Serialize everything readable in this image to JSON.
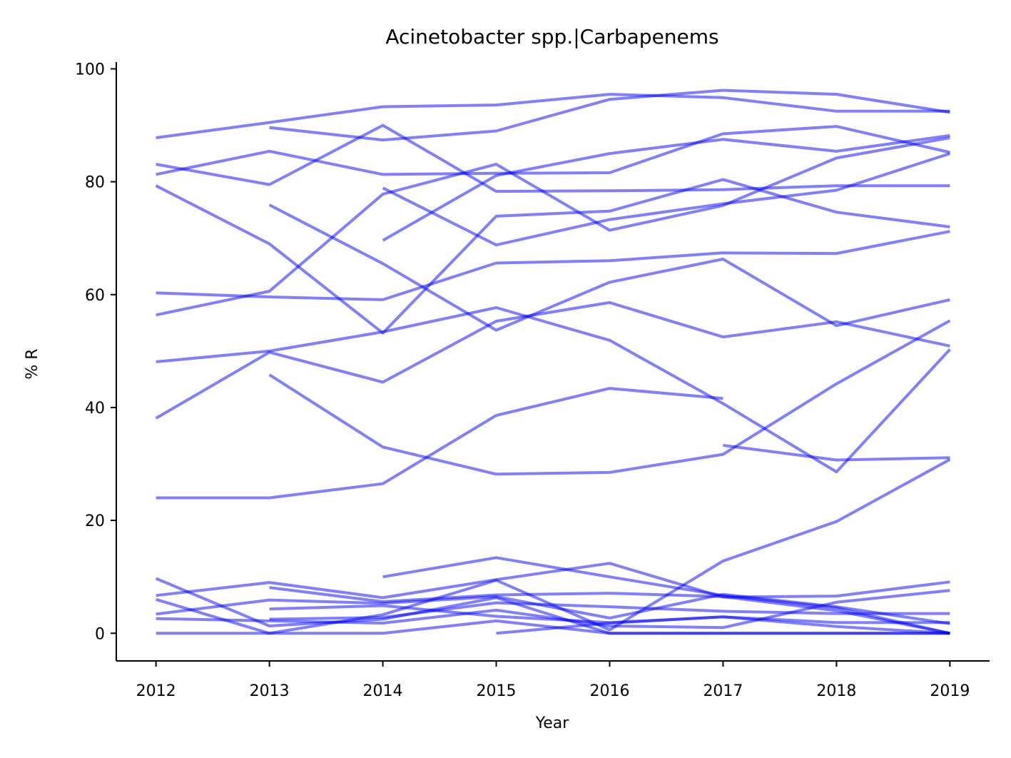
{
  "chart_data": {
    "type": "line",
    "title": "Acinetobacter spp.|Carbapenems",
    "xlabel": "Year",
    "ylabel": "% R",
    "x": [
      2012,
      2013,
      2014,
      2015,
      2016,
      2017,
      2018,
      2019
    ],
    "x_ticks": [
      2012,
      2013,
      2014,
      2015,
      2016,
      2017,
      2018,
      2019
    ],
    "y_ticks": [
      0,
      20,
      40,
      60,
      80,
      100
    ],
    "xlim": [
      2011.65,
      2019.35
    ],
    "ylim": [
      -4.9,
      101.2
    ],
    "grid": false,
    "legend": "none",
    "line_color": "#0000ff",
    "line_opacity": 0.5,
    "series": [
      {
        "values": [
          87.8,
          90.5,
          93.3,
          93.6,
          95.5,
          94.9,
          92.5,
          92.5
        ]
      },
      {
        "values": [
          null,
          89.6,
          87.4,
          89.0,
          94.6,
          96.2,
          95.5,
          92.3
        ]
      },
      {
        "values": [
          83.1,
          79.5,
          90.0,
          78.3,
          78.4,
          78.6,
          79.3,
          79.3
        ]
      },
      {
        "values": [
          81.3,
          85.4,
          81.3,
          81.5,
          81.6,
          88.5,
          89.8,
          85.2
        ]
      },
      {
        "values": [
          null,
          null,
          69.6,
          81.1,
          85.0,
          87.5,
          85.4,
          88.2
        ]
      },
      {
        "values": [
          79.3,
          69.0,
          53.2,
          73.9,
          74.8,
          80.4,
          74.6,
          72.0
        ]
      },
      {
        "values": [
          56.4,
          60.6,
          77.8,
          83.1,
          71.4,
          75.8,
          84.2,
          87.8
        ]
      },
      {
        "values": [
          null,
          null,
          78.9,
          68.8,
          73.3,
          76.1,
          78.5,
          85.0
        ]
      },
      {
        "values": [
          60.3,
          59.6,
          59.1,
          65.6,
          66.0,
          67.4,
          67.3,
          71.2
        ]
      },
      {
        "values": [
          null,
          75.9,
          65.5,
          53.7,
          62.2,
          66.3,
          54.5,
          59.1
        ]
      },
      {
        "values": [
          48.1,
          50.0,
          53.4,
          57.7,
          51.9,
          40.7,
          28.6,
          50.3
        ]
      },
      {
        "values": [
          38.1,
          49.8,
          44.5,
          55.3,
          58.6,
          52.5,
          55.2,
          50.9
        ]
      },
      {
        "values": [
          null,
          45.8,
          33.0,
          28.2,
          28.5,
          31.7,
          44.2,
          55.4
        ]
      },
      {
        "values": [
          24.0,
          24.0,
          26.5,
          38.6,
          43.4,
          41.6,
          null,
          null
        ]
      },
      {
        "values": [
          null,
          null,
          null,
          null,
          null,
          33.3,
          30.7,
          31.1
        ]
      },
      {
        "values": [
          null,
          null,
          10.0,
          13.4,
          10.0,
          6.7,
          4.5,
          0.0
        ]
      },
      {
        "values": [
          6.7,
          9.0,
          6.3,
          9.5,
          12.4,
          6.4,
          6.6,
          9.1
        ]
      },
      {
        "values": [
          9.7,
          1.3,
          2.5,
          6.3,
          0.0,
          0.0,
          0.0,
          0.0
        ]
      },
      {
        "values": [
          6.0,
          0.0,
          3.3,
          9.4,
          0.6,
          12.8,
          19.8,
          30.8
        ]
      },
      {
        "values": [
          null,
          8.1,
          5.6,
          6.8,
          7.1,
          6.5,
          4.0,
          0.0
        ]
      },
      {
        "values": [
          3.4,
          5.9,
          5.3,
          6.5,
          2.7,
          6.9,
          4.7,
          1.7
        ]
      },
      {
        "values": [
          2.6,
          2.2,
          1.8,
          4.1,
          1.3,
          1.0,
          5.5,
          7.6
        ]
      },
      {
        "values": [
          null,
          2.5,
          2.8,
          5.4,
          4.7,
          3.9,
          3.5,
          3.5
        ]
      },
      {
        "values": [
          null,
          4.3,
          4.9,
          3.0,
          1.9,
          2.9,
          1.9,
          1.9
        ]
      },
      {
        "values": [
          0.0,
          0.0,
          0.0,
          2.2,
          0.0,
          0.0,
          0.0,
          0.0
        ]
      },
      {
        "values": [
          null,
          null,
          null,
          0.0,
          1.8,
          2.9,
          1.2,
          0.0
        ]
      }
    ]
  }
}
